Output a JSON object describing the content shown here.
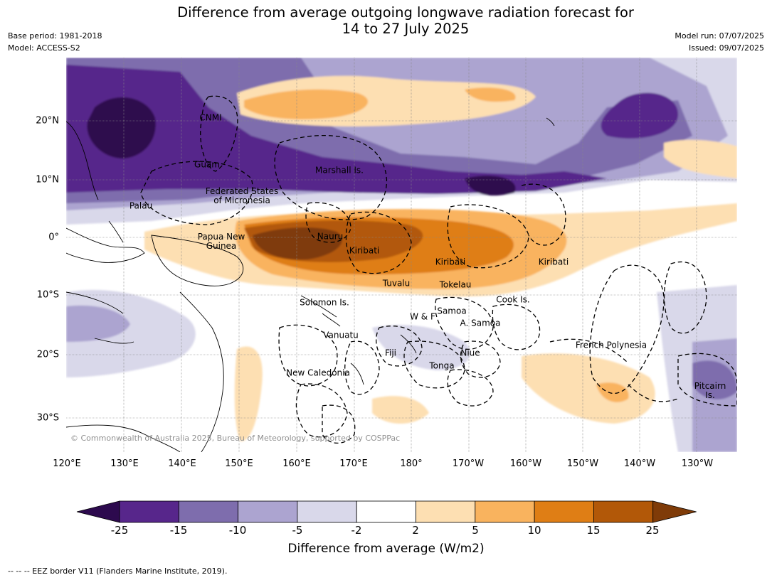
{
  "title": {
    "line1": "Difference from average outgoing longwave radiation forecast for",
    "line2": "14 to 27 July 2025"
  },
  "meta": {
    "base_period": "Base period: 1981-2018",
    "model": "Model: ACCESS-S2",
    "model_run": "Model run: 07/07/2025",
    "issued": "Issued: 09/07/2025"
  },
  "map": {
    "lon_ticks": [
      "120°E",
      "130°E",
      "140°E",
      "150°E",
      "160°E",
      "170°E",
      "180°",
      "170°W",
      "160°W",
      "150°W",
      "140°W",
      "130°W"
    ],
    "lat_ticks": [
      "20°N",
      "10°N",
      "0°",
      "10°S",
      "20°S",
      "30°S"
    ],
    "places": [
      {
        "name": "CNMI",
        "lines": [
          "CNMI"
        ]
      },
      {
        "name": "Guam",
        "lines": [
          "Guam"
        ]
      },
      {
        "name": "Marshall",
        "lines": [
          "Marshall Is."
        ]
      },
      {
        "name": "FSM",
        "lines": [
          "Federated States",
          "of Micronesia"
        ]
      },
      {
        "name": "Palau",
        "lines": [
          "Palau"
        ]
      },
      {
        "name": "PNG",
        "lines": [
          "Papua New",
          "Guinea"
        ]
      },
      {
        "name": "Nauru",
        "lines": [
          "Nauru"
        ]
      },
      {
        "name": "Kiribati-W",
        "lines": [
          "Kiribati"
        ]
      },
      {
        "name": "Kiribati-C",
        "lines": [
          "Kiribati"
        ]
      },
      {
        "name": "Kiribati-E",
        "lines": [
          "Kiribati"
        ]
      },
      {
        "name": "Tuvalu",
        "lines": [
          "Tuvalu"
        ]
      },
      {
        "name": "Tokelau",
        "lines": [
          "Tokelau"
        ]
      },
      {
        "name": "Solomon",
        "lines": [
          "Solomon Is."
        ]
      },
      {
        "name": "Cook",
        "lines": [
          "Cook Is."
        ]
      },
      {
        "name": "WF",
        "lines": [
          "W & F"
        ]
      },
      {
        "name": "Samoa",
        "lines": [
          "Samoa"
        ]
      },
      {
        "name": "ASamoa",
        "lines": [
          "A. Samoa"
        ]
      },
      {
        "name": "Vanuatu",
        "lines": [
          "Vanuatu"
        ]
      },
      {
        "name": "Fiji",
        "lines": [
          "Fiji"
        ]
      },
      {
        "name": "Niue",
        "lines": [
          "Niue"
        ]
      },
      {
        "name": "Tonga",
        "lines": [
          "Tonga"
        ]
      },
      {
        "name": "NewCaledonia",
        "lines": [
          "New Caledonia"
        ]
      },
      {
        "name": "FrenchPolynesia",
        "lines": [
          "French Polynesia"
        ]
      },
      {
        "name": "Pitcairn",
        "lines": [
          "Pitcairn",
          "Is."
        ]
      }
    ],
    "copyright": "© Commonwealth of Australia 2025, Bureau of Meteorology, supported by COSPPac"
  },
  "colorbar": {
    "ticks": [
      "-25",
      "-15",
      "-10",
      "-5",
      "-2",
      "2",
      "5",
      "10",
      "15",
      "25"
    ],
    "colors": [
      "#2d0a4e",
      "#57268b",
      "#7e6dad",
      "#aca4d0",
      "#d9d8ea",
      "#ffffff",
      "#fddfb2",
      "#f9b35e",
      "#df7e15",
      "#b25808",
      "#7f3b08"
    ],
    "label": "Difference from average (W/m2)"
  },
  "footnote": "--  --  -- EEZ border V11 (Flanders Marine Institute, 2019)."
}
